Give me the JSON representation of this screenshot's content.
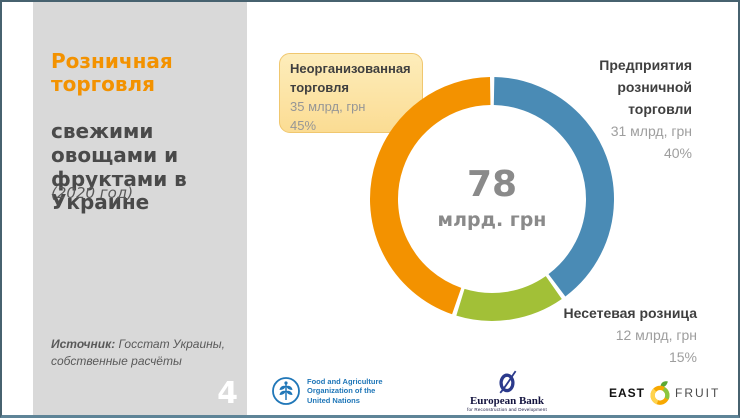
{
  "slide": {
    "page_number": "4",
    "title_accent": "Розничная\nторговля",
    "title_main": "свежими\nовощами и\nфруктами в\nУкраине",
    "subtitle": "(2020 год)",
    "source_label": "Источник:",
    "source_rest": " Госстат Украины,\nсобственные расчёты",
    "colors": {
      "accent_orange": "#F39200",
      "sidebar_bg": "#D9D9D9",
      "frame_border": "#47626F",
      "center_text_gray": "#8A8A8A"
    }
  },
  "chart_data": {
    "type": "pie",
    "variant": "donut",
    "title": "Розничная торговля свежими овощами и фруктами в Украине (2020 год)",
    "center_value": "78",
    "center_unit": "млрд. грн",
    "total_value": 78,
    "unit": "млрд грн",
    "start_angle_deg": 0,
    "direction": "clockwise",
    "segments": [
      {
        "label": "Предприятия розничной торговли",
        "value": 31,
        "value_label": "31 млрд, грн",
        "percent": 40,
        "percent_label": "40%",
        "color": "#4A8BB5",
        "highlighted": false
      },
      {
        "label": "Несетевая розница",
        "value": 12,
        "value_label": "12 млрд, грн",
        "percent": 15,
        "percent_label": "15%",
        "color": "#A2C037",
        "highlighted": false
      },
      {
        "label": "Неорганизованная торговля",
        "value": 35,
        "value_label": "35 млрд, грн",
        "percent": 45,
        "percent_label": "45%",
        "color": "#F39200",
        "highlighted": true
      }
    ]
  },
  "footer": {
    "fao": {
      "text": "Food and Agriculture\nOrganization of the\nUnited Nations",
      "color": "#2077B8"
    },
    "ebrd": {
      "name": "European Bank",
      "subtitle": "for Reconstruction and Development",
      "color": "#2B3A8C"
    },
    "eastfruit": {
      "word1": "EAST",
      "word2": "FRUIT"
    }
  }
}
